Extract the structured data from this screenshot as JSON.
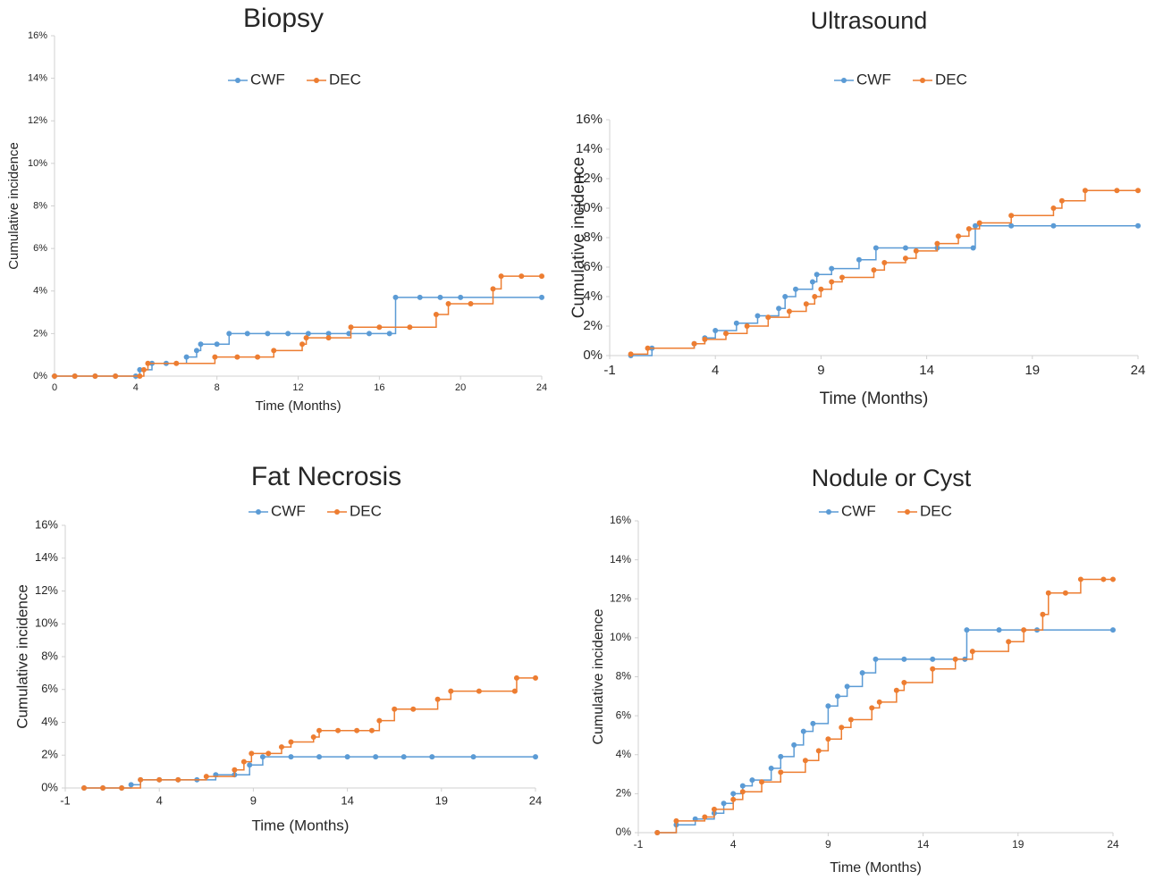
{
  "chart_data": [
    {
      "type": "line",
      "step": true,
      "title": "Biopsy",
      "x_label": "Time (Months)",
      "y_label": "Cumulative incidence",
      "xlim": [
        0,
        24
      ],
      "xticks": [
        0,
        4,
        8,
        12,
        16,
        20,
        24
      ],
      "ylim": [
        0,
        16
      ],
      "yticks": [
        {
          "value": 0,
          "label": "0%"
        },
        {
          "value": 2,
          "label": "2%"
        },
        {
          "value": 4,
          "label": "4%"
        },
        {
          "value": 6,
          "label": "6%"
        },
        {
          "value": 8,
          "label": "8%"
        },
        {
          "value": 10,
          "label": "10%"
        },
        {
          "value": 12,
          "label": "12%"
        },
        {
          "value": 14,
          "label": "14%"
        },
        {
          "value": 16,
          "label": "16%"
        }
      ],
      "series": [
        {
          "name": "CWF",
          "color": "#5b9bd5",
          "x": [
            0,
            1,
            2,
            3,
            4,
            4.2,
            4.8,
            5.5,
            6.5,
            7,
            7.2,
            8,
            8.6,
            9.5,
            10.5,
            11.5,
            12.5,
            13.5,
            14.5,
            15.5,
            16.5,
            16.8,
            18,
            19,
            20,
            24
          ],
          "values": [
            0,
            0,
            0,
            0,
            0,
            0.3,
            0.6,
            0.6,
            0.9,
            1.2,
            1.5,
            1.5,
            2.0,
            2.0,
            2.0,
            2.0,
            2.0,
            2.0,
            2.0,
            2.0,
            2.0,
            3.7,
            3.7,
            3.7,
            3.7,
            3.7
          ]
        },
        {
          "name": "DEC",
          "color": "#ed7d31",
          "x": [
            0,
            1,
            2,
            3,
            4.2,
            4.4,
            4.6,
            6,
            7.9,
            9,
            10,
            10.8,
            12.2,
            12.4,
            13.5,
            14.6,
            16,
            17.5,
            18.8,
            19.4,
            20.5,
            21.6,
            22,
            23,
            24
          ],
          "values": [
            0,
            0,
            0,
            0,
            0,
            0.3,
            0.6,
            0.6,
            0.9,
            0.9,
            0.9,
            1.2,
            1.5,
            1.8,
            1.8,
            2.3,
            2.3,
            2.3,
            2.9,
            3.4,
            3.4,
            4.1,
            4.7,
            4.7,
            4.7
          ]
        }
      ]
    },
    {
      "type": "line",
      "step": true,
      "title": "Ultrasound",
      "x_label": "Time (Months)",
      "y_label": "Cumulative incidence",
      "xlim": [
        -1,
        24
      ],
      "xticks": [
        -1,
        4,
        9,
        14,
        19,
        24
      ],
      "ylim": [
        0,
        16
      ],
      "yticks": [
        {
          "value": 0,
          "label": "0%"
        },
        {
          "value": 2,
          "label": "2%"
        },
        {
          "value": 4,
          "label": "4%"
        },
        {
          "value": 6,
          "label": "6%"
        },
        {
          "value": 8,
          "label": "8%"
        },
        {
          "value": 10,
          "label": "10%"
        },
        {
          "value": 12,
          "label": "12%"
        },
        {
          "value": 14,
          "label": "14%"
        },
        {
          "value": 16,
          "label": "16%"
        }
      ],
      "series": [
        {
          "name": "CWF",
          "color": "#5b9bd5",
          "x": [
            0,
            1,
            3,
            3.5,
            4,
            5,
            6,
            7,
            7.3,
            7.8,
            8.6,
            8.8,
            9.5,
            10.8,
            11.6,
            13,
            14.5,
            16.2,
            16.3,
            18,
            20,
            24
          ],
          "values": [
            0,
            0.5,
            0.8,
            1.2,
            1.7,
            2.2,
            2.7,
            3.2,
            4.0,
            4.5,
            5.0,
            5.5,
            5.9,
            6.5,
            7.3,
            7.3,
            7.3,
            7.3,
            8.8,
            8.8,
            8.8,
            8.8
          ]
        },
        {
          "name": "DEC",
          "color": "#ed7d31",
          "x": [
            0,
            0.8,
            3,
            3.5,
            4.5,
            5.5,
            6.5,
            7.5,
            8.3,
            8.7,
            9,
            9.5,
            10,
            11.5,
            12,
            13,
            13.5,
            14.5,
            15.5,
            16,
            16.5,
            18,
            20,
            20.4,
            21.5,
            23,
            24
          ],
          "values": [
            0.1,
            0.5,
            0.8,
            1.1,
            1.5,
            2.0,
            2.6,
            3.0,
            3.5,
            4.0,
            4.5,
            5.0,
            5.3,
            5.8,
            6.3,
            6.6,
            7.1,
            7.6,
            8.1,
            8.6,
            9.0,
            9.5,
            10.0,
            10.5,
            11.2,
            11.2,
            11.2
          ]
        }
      ]
    },
    {
      "type": "line",
      "step": true,
      "title": "Fat Necrosis",
      "x_label": "Time (Months)",
      "y_label": "Cumulative incidence",
      "xlim": [
        -1,
        24
      ],
      "xticks": [
        -1,
        4,
        9,
        14,
        19,
        24
      ],
      "ylim": [
        0,
        16
      ],
      "yticks": [
        {
          "value": 0,
          "label": "0%"
        },
        {
          "value": 2,
          "label": "2%"
        },
        {
          "value": 4,
          "label": "4%"
        },
        {
          "value": 6,
          "label": "6%"
        },
        {
          "value": 8,
          "label": "8%"
        },
        {
          "value": 10,
          "label": "10%"
        },
        {
          "value": 12,
          "label": "12%"
        },
        {
          "value": 14,
          "label": "14%"
        },
        {
          "value": 16,
          "label": "16%"
        }
      ],
      "series": [
        {
          "name": "CWF",
          "color": "#5b9bd5",
          "x": [
            0,
            1,
            2,
            2.5,
            3,
            4,
            5,
            6,
            7,
            8,
            8.8,
            9.5,
            11,
            12.5,
            14,
            15.5,
            17,
            18.5,
            20.7,
            24
          ],
          "values": [
            0,
            0,
            0,
            0.2,
            0.5,
            0.5,
            0.5,
            0.5,
            0.8,
            0.8,
            1.4,
            1.9,
            1.9,
            1.9,
            1.9,
            1.9,
            1.9,
            1.9,
            1.9,
            1.9
          ]
        },
        {
          "name": "DEC",
          "color": "#ed7d31",
          "x": [
            0,
            1,
            2,
            3,
            4,
            5,
            6.5,
            8,
            8.5,
            8.9,
            9.8,
            10.5,
            11,
            12.2,
            12.5,
            13.5,
            14.5,
            15.3,
            15.7,
            16.5,
            17.5,
            18.8,
            19.5,
            21,
            22.9,
            23,
            24
          ],
          "values": [
            0,
            0,
            0,
            0.5,
            0.5,
            0.5,
            0.7,
            1.1,
            1.6,
            2.1,
            2.1,
            2.5,
            2.8,
            3.1,
            3.5,
            3.5,
            3.5,
            3.5,
            4.1,
            4.8,
            4.8,
            5.4,
            5.9,
            5.9,
            5.9,
            6.7,
            6.7
          ]
        }
      ]
    },
    {
      "type": "line",
      "step": true,
      "title": "Nodule or Cyst",
      "x_label": "Time (Months)",
      "y_label": "Cumulative incidence",
      "xlim": [
        -1,
        24
      ],
      "xticks": [
        -1,
        4,
        9,
        14,
        19,
        24
      ],
      "ylim": [
        0,
        16
      ],
      "yticks": [
        {
          "value": 0,
          "label": "0%"
        },
        {
          "value": 2,
          "label": "2%"
        },
        {
          "value": 4,
          "label": "4%"
        },
        {
          "value": 6,
          "label": "6%"
        },
        {
          "value": 8,
          "label": "8%"
        },
        {
          "value": 10,
          "label": "10%"
        },
        {
          "value": 12,
          "label": "12%"
        },
        {
          "value": 14,
          "label": "14%"
        },
        {
          "value": 16,
          "label": "16%"
        }
      ],
      "series": [
        {
          "name": "CWF",
          "color": "#5b9bd5",
          "x": [
            0,
            1,
            2,
            3,
            3.5,
            4,
            4.5,
            5,
            6,
            6.5,
            7.2,
            7.7,
            8.2,
            9,
            9.5,
            10,
            10.8,
            11.5,
            13,
            14.5,
            16.2,
            16.3,
            18,
            20,
            24
          ],
          "values": [
            0,
            0.4,
            0.7,
            1.0,
            1.5,
            2.0,
            2.4,
            2.7,
            3.3,
            3.9,
            4.5,
            5.2,
            5.6,
            6.5,
            7.0,
            7.5,
            8.2,
            8.9,
            8.9,
            8.9,
            8.9,
            10.4,
            10.4,
            10.4,
            10.4
          ]
        },
        {
          "name": "DEC",
          "color": "#ed7d31",
          "x": [
            0,
            1,
            2.5,
            3,
            4,
            4.5,
            5.5,
            6.5,
            7.8,
            8.5,
            9,
            9.7,
            10.2,
            11.3,
            11.7,
            12.6,
            13,
            14.5,
            15.7,
            16.6,
            18.5,
            19.3,
            20.3,
            20.6,
            21.5,
            22.3,
            23.5,
            24
          ],
          "values": [
            0,
            0.6,
            0.8,
            1.2,
            1.7,
            2.1,
            2.6,
            3.1,
            3.7,
            4.2,
            4.8,
            5.4,
            5.8,
            6.4,
            6.7,
            7.3,
            7.7,
            8.4,
            8.9,
            9.3,
            9.8,
            10.4,
            11.2,
            12.3,
            12.3,
            13.0,
            13.0,
            13.0
          ]
        }
      ]
    }
  ]
}
